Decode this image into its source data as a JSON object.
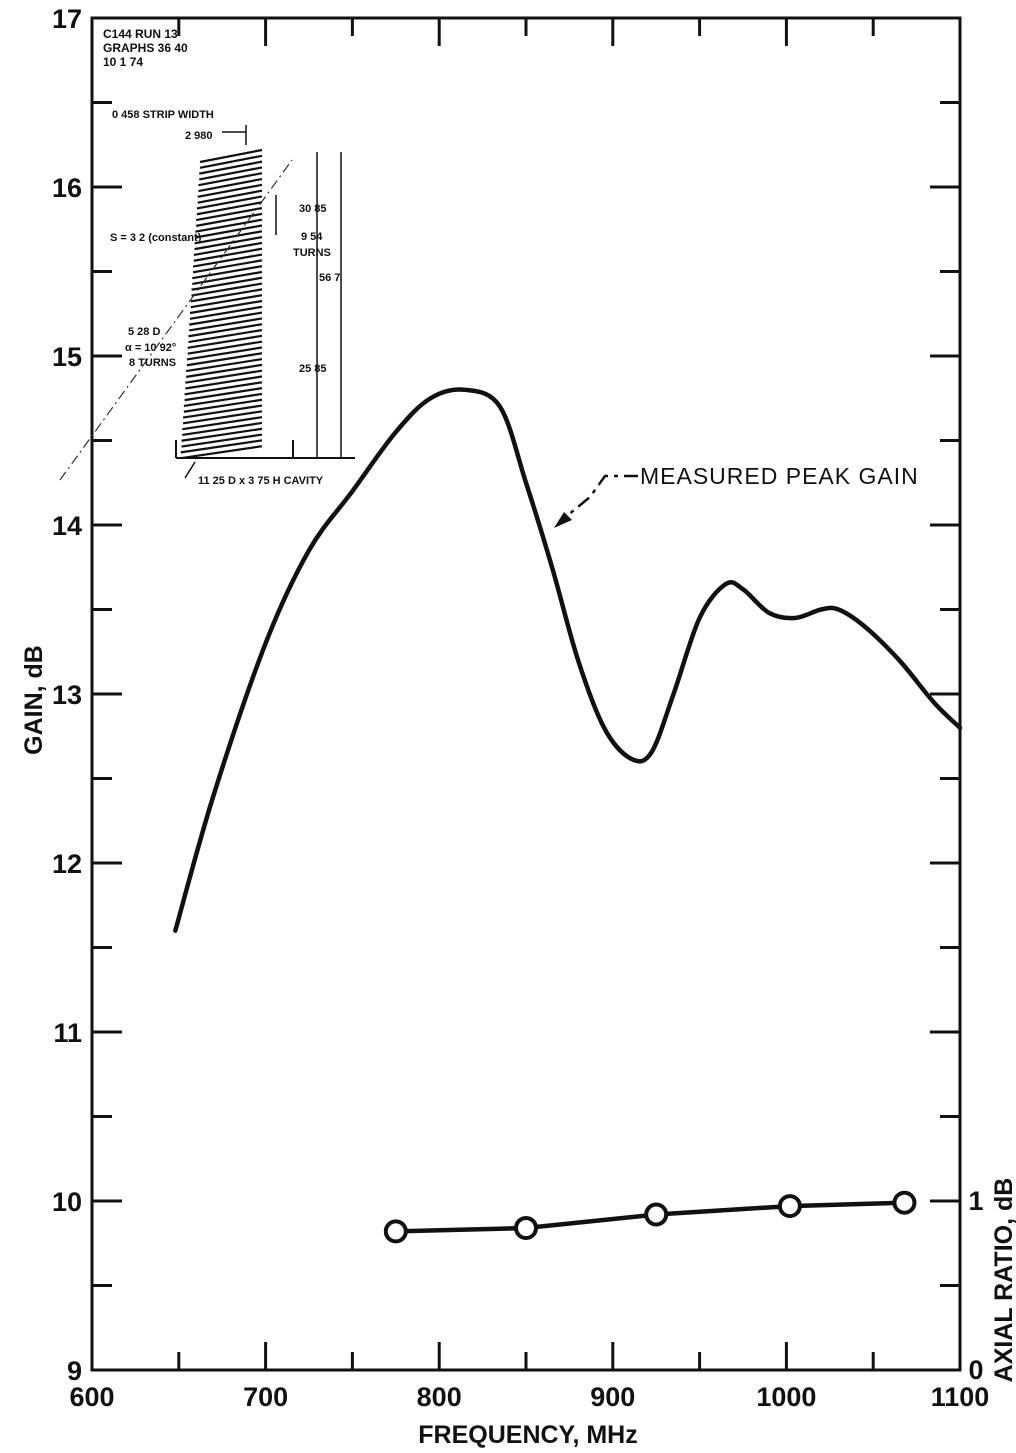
{
  "chart_data": {
    "type": "line",
    "xlabel": "FREQUENCY, MHz",
    "ylabel": "GAIN, dB",
    "y2label": "AXIAL RATIO, dB",
    "xlim": [
      600,
      1100
    ],
    "ylim": [
      9,
      17
    ],
    "y2lim": [
      0,
      1
    ],
    "x_ticks": [
      600,
      700,
      800,
      900,
      1000,
      1100
    ],
    "y_ticks": [
      9,
      10,
      11,
      12,
      13,
      14,
      15,
      16,
      17
    ],
    "y2_ticks": [
      0,
      1
    ],
    "grid": false,
    "series": [
      {
        "name": "MEASURED PEAK GAIN",
        "axis": "left",
        "color": "#111111",
        "marker": "none",
        "x": [
          648,
          670,
          700,
          725,
          750,
          775,
          795,
          815,
          835,
          850,
          865,
          880,
          895,
          910,
          922,
          935,
          950,
          965,
          975,
          990,
          1005,
          1020,
          1030,
          1045,
          1065,
          1085,
          1100
        ],
        "y": [
          11.6,
          12.4,
          13.3,
          13.85,
          14.2,
          14.55,
          14.75,
          14.8,
          14.7,
          14.25,
          13.75,
          13.2,
          12.8,
          12.62,
          12.65,
          13.0,
          13.45,
          13.65,
          13.62,
          13.48,
          13.45,
          13.5,
          13.5,
          13.4,
          13.2,
          12.95,
          12.8
        ]
      },
      {
        "name": "",
        "axis": "right",
        "color": "#111111",
        "marker": "circle",
        "x": [
          775,
          850,
          925,
          1002,
          1068
        ],
        "y": [
          0.82,
          0.84,
          0.92,
          0.97,
          0.99
        ]
      }
    ],
    "annotations": [
      {
        "text": "MEASURED PEAK GAIN",
        "points_to": [
          858,
          13.95
        ]
      }
    ]
  },
  "inset": {
    "stamp_lines": [
      "C144   RUN 13",
      "GRAPHS 36 40",
      "10 1 74"
    ],
    "labels": {
      "strip_width": "0 458 STRIP WIDTH",
      "dim_2980": "2 980",
      "spacing": "S = 3 2 (constant)",
      "dim_3085": "30 85",
      "turns_954": "9 54",
      "turns_word_1": "TURNS",
      "dim_567": "56 7",
      "dim_528": "5 28 D",
      "alpha": "α = 10 92°",
      "turns_8": "8 TURNS",
      "dim_2585": "25 85",
      "cavity": "11 25 D x 3 75 H CAVITY"
    }
  }
}
